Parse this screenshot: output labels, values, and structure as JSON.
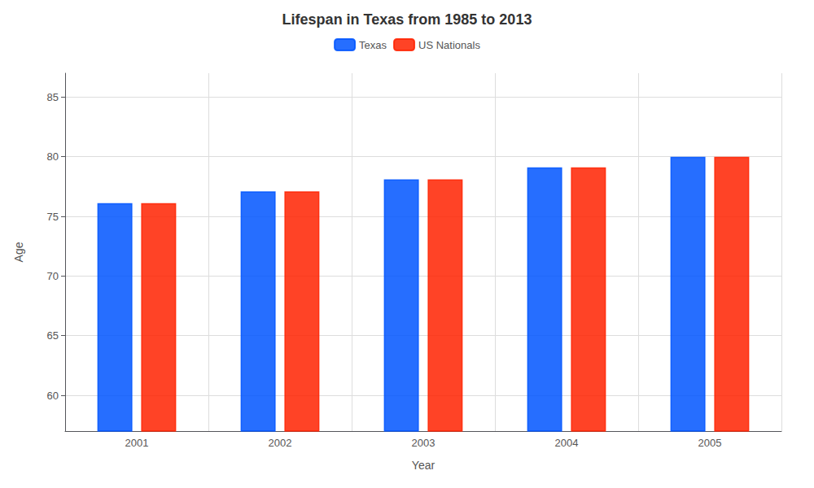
{
  "chart_data": {
    "type": "bar",
    "title": "Lifespan in Texas from 1985 to 2013",
    "xlabel": "Year",
    "ylabel": "Age",
    "categories": [
      "2001",
      "2002",
      "2003",
      "2004",
      "2005"
    ],
    "series": [
      {
        "name": "Texas",
        "color": "#0055ff",
        "values": [
          76.1,
          77.1,
          78.1,
          79.1,
          80.0
        ]
      },
      {
        "name": "US Nationals",
        "color": "#ff2200",
        "values": [
          76.1,
          77.1,
          78.1,
          79.1,
          80.0
        ]
      }
    ],
    "ylim": [
      57,
      87
    ],
    "yticks": [
      60,
      65,
      70,
      75,
      80,
      85
    ],
    "grid": true,
    "legend": "top"
  }
}
